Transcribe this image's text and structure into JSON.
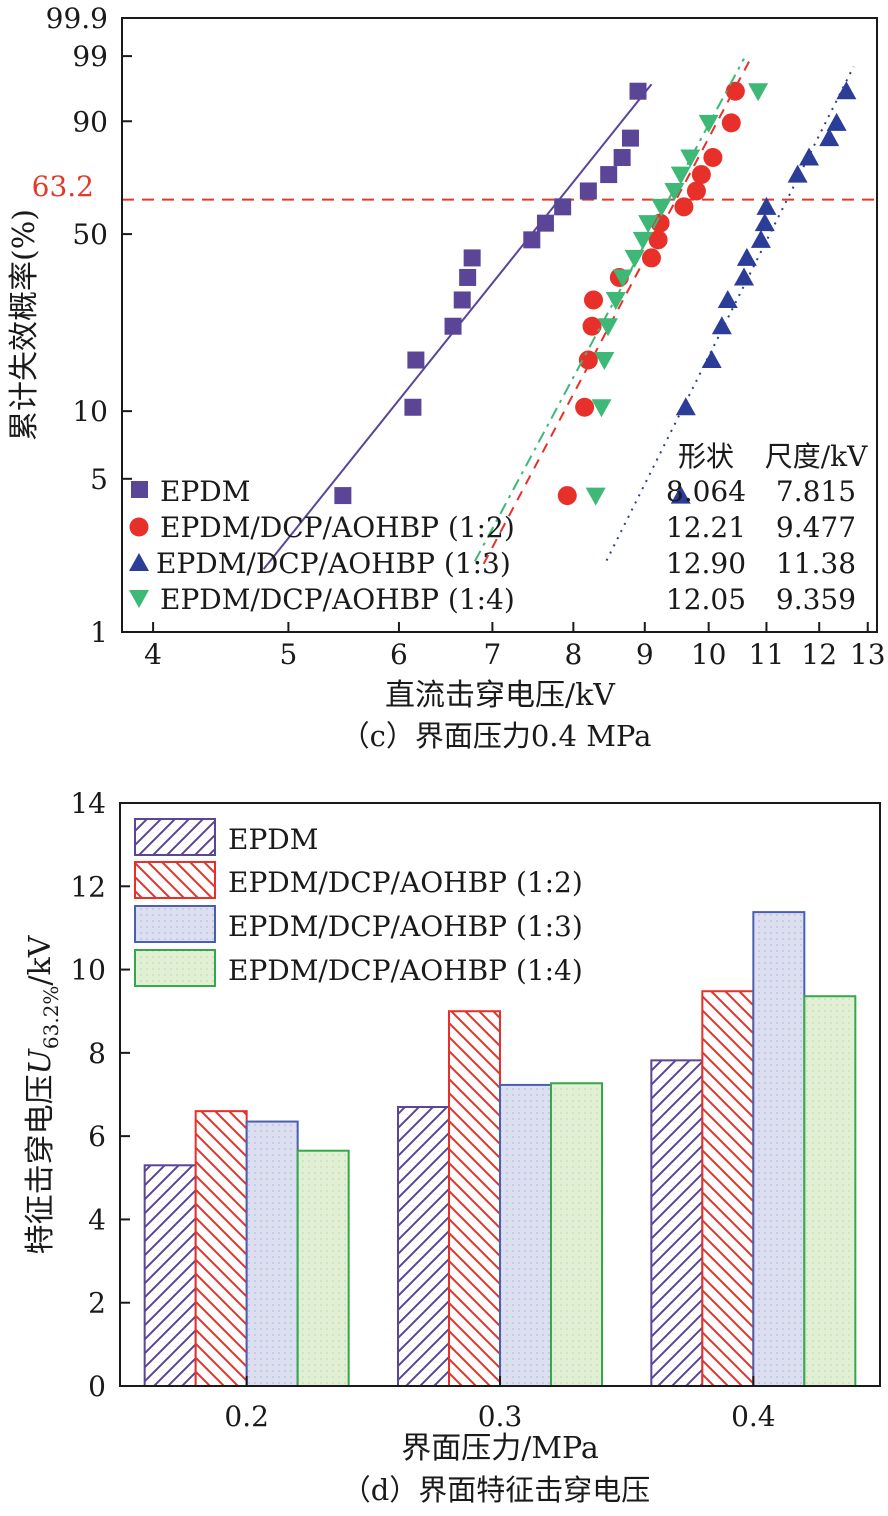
{
  "chart_data": [
    {
      "type": "scatter",
      "subtype": "weibull-probability-plot",
      "title": "",
      "caption": "（c）界面压力0.4 MPa",
      "xlabel": "直流击穿电压/kV",
      "ylabel": "累计失效概率(%)",
      "x_scale": "log",
      "xlim": [
        3.8,
        13.2
      ],
      "x_ticks": [
        {
          "value": 4,
          "label": "4"
        },
        {
          "value": 5,
          "label": "5"
        },
        {
          "value": 6,
          "label": "6"
        },
        {
          "value": 7,
          "label": "7"
        },
        {
          "value": 8,
          "label": "8"
        },
        {
          "value": 9,
          "label": "9"
        },
        {
          "value": 10,
          "label": "10"
        },
        {
          "value": 11,
          "label": "11"
        },
        {
          "value": 12,
          "label": "12"
        },
        {
          "value": 13,
          "label": "13"
        }
      ],
      "y_scale": "weibull",
      "ylim": [
        1,
        99.9
      ],
      "y_ticks": [
        {
          "value": 1,
          "label": "1"
        },
        {
          "value": 5,
          "label": "5"
        },
        {
          "value": 10,
          "label": "10"
        },
        {
          "value": 50,
          "label": "50"
        },
        {
          "value": 90,
          "label": "90"
        },
        {
          "value": 99,
          "label": "99"
        },
        {
          "value": 99.9,
          "label": "99.9"
        }
      ],
      "reference_line": {
        "y": 63.2,
        "label": "63.2",
        "color": "#e03a2a",
        "style": "dashed"
      },
      "legend_position": "bottom-left",
      "stats_header": {
        "shape": "形状",
        "scale": "尺度/kV"
      },
      "series": [
        {
          "name": "EPDM",
          "marker": "square",
          "color": "#5b4596",
          "fit_style": "solid",
          "shape": "8.064",
          "scale": "7.815",
          "beta": 8.064,
          "eta": 7.815,
          "fit_range": [
            4.8,
            9.1
          ],
          "points": [
            [
              5.47,
              4.2
            ],
            [
              6.14,
              10.4
            ],
            [
              6.17,
              16.6
            ],
            [
              6.56,
              22.9
            ],
            [
              6.66,
              29.1
            ],
            [
              6.72,
              35.4
            ],
            [
              6.77,
              41.6
            ],
            [
              7.47,
              47.9
            ],
            [
              7.64,
              54.1
            ],
            [
              7.86,
              60.4
            ],
            [
              8.2,
              66.6
            ],
            [
              8.48,
              72.9
            ],
            [
              8.67,
              79.1
            ],
            [
              8.79,
              85.4
            ],
            [
              8.9,
              95.8
            ]
          ]
        },
        {
          "name": "EPDM/DCP/AOHBP (1:2)",
          "marker": "circle",
          "color": "#e8302a",
          "fit_style": "dashed",
          "shape": "12.21",
          "scale": "9.477",
          "beta": 12.21,
          "eta": 9.477,
          "fit_range": [
            6.9,
            10.7
          ],
          "points": [
            [
              7.92,
              4.2
            ],
            [
              8.15,
              10.4
            ],
            [
              8.2,
              16.6
            ],
            [
              8.25,
              22.9
            ],
            [
              8.27,
              29.1
            ],
            [
              8.63,
              35.4
            ],
            [
              9.1,
              41.6
            ],
            [
              9.2,
              47.9
            ],
            [
              9.23,
              54.1
            ],
            [
              9.6,
              60.4
            ],
            [
              9.8,
              66.6
            ],
            [
              9.88,
              72.9
            ],
            [
              10.07,
              79.1
            ],
            [
              10.38,
              89.6
            ],
            [
              10.45,
              95.8
            ]
          ]
        },
        {
          "name": "EPDM/DCP/AOHBP (1:3)",
          "marker": "triangle-up",
          "color": "#2b3d96",
          "fit_style": "dotted",
          "shape": "12.90",
          "scale": "11.38",
          "beta": 12.9,
          "eta": 11.38,
          "fit_range": [
            8.45,
            12.7
          ],
          "points": [
            [
              9.55,
              4.2
            ],
            [
              9.63,
              10.4
            ],
            [
              10.05,
              16.6
            ],
            [
              10.22,
              22.9
            ],
            [
              10.32,
              29.1
            ],
            [
              10.6,
              35.4
            ],
            [
              10.65,
              41.6
            ],
            [
              10.9,
              47.9
            ],
            [
              10.97,
              54.1
            ],
            [
              11.0,
              60.4
            ],
            [
              11.58,
              72.9
            ],
            [
              11.8,
              79.1
            ],
            [
              12.2,
              85.4
            ],
            [
              12.35,
              89.6
            ],
            [
              12.55,
              95.8
            ]
          ]
        },
        {
          "name": "EPDM/DCP/AOHBP (1:4)",
          "marker": "triangle-down",
          "color": "#3db876",
          "fit_style": "dash-dot",
          "shape": "12.05",
          "scale": "9.359",
          "beta": 12.05,
          "eta": 9.359,
          "fit_range": [
            6.8,
            10.6
          ],
          "points": [
            [
              8.3,
              4.2
            ],
            [
              8.38,
              10.4
            ],
            [
              8.42,
              16.6
            ],
            [
              8.47,
              22.9
            ],
            [
              8.58,
              29.1
            ],
            [
              8.68,
              35.4
            ],
            [
              8.85,
              41.6
            ],
            [
              8.97,
              47.9
            ],
            [
              9.05,
              54.1
            ],
            [
              9.25,
              60.4
            ],
            [
              9.45,
              66.6
            ],
            [
              9.55,
              72.9
            ],
            [
              9.7,
              79.1
            ],
            [
              10.0,
              89.6
            ],
            [
              10.85,
              95.8
            ]
          ]
        }
      ]
    },
    {
      "type": "bar",
      "title": "",
      "caption": "（d）界面特征击穿电压",
      "xlabel": "界面压力/MPa",
      "ylabel_prefix": "特征击穿电压",
      "ylabel_var": "U",
      "ylabel_sub": "63.2%",
      "ylabel_suffix": "/kV",
      "categories": [
        "0.2",
        "0.3",
        "0.4"
      ],
      "ylim": [
        0,
        14
      ],
      "y_ticks": [
        0,
        2,
        4,
        6,
        8,
        10,
        12,
        14
      ],
      "legend_position": "top-left",
      "series": [
        {
          "name": "EPDM",
          "pattern": "hatch-forward",
          "color": "#5b4596",
          "fill": "#ffffff",
          "values": [
            5.3,
            6.7,
            7.82
          ]
        },
        {
          "name": "EPDM/DCP/AOHBP (1:2)",
          "pattern": "hatch-backward",
          "color": "#e8302a",
          "fill": "#ffffff",
          "values": [
            6.6,
            9.0,
            9.48
          ]
        },
        {
          "name": "EPDM/DCP/AOHBP (1:3)",
          "pattern": "dotted",
          "color": "#4a5fb0",
          "fill": "#dcdff0",
          "values": [
            6.35,
            7.23,
            11.38
          ]
        },
        {
          "name": "EPDM/DCP/AOHBP (1:4)",
          "pattern": "dotted",
          "color": "#34a84a",
          "fill": "#e1f0d5",
          "values": [
            5.65,
            7.27,
            9.36
          ]
        }
      ]
    }
  ]
}
